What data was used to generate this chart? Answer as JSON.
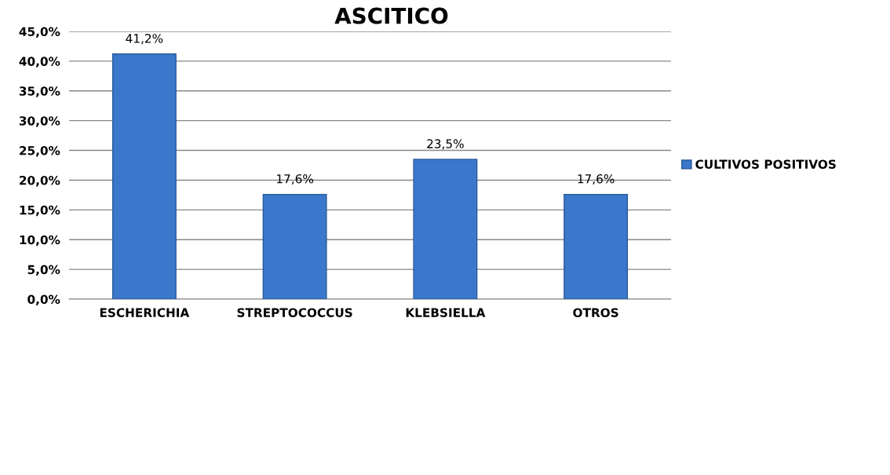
{
  "chart_data": {
    "type": "bar",
    "title": "ASCITICO",
    "categories": [
      "ESCHERICHIA",
      "STREPTOCOCCUS",
      "KLEBSIELLA",
      "OTROS"
    ],
    "series": [
      {
        "name": "CULTIVOS POSITIVOS",
        "color": "#3a78cc",
        "values": [
          41.2,
          17.6,
          23.5,
          17.6
        ],
        "value_labels": [
          "41,2%",
          "17,6%",
          "23,5%",
          "17,6%"
        ]
      }
    ],
    "ylim": [
      0,
      45
    ],
    "yticks": [
      {
        "value": 0,
        "label": "0,0%"
      },
      {
        "value": 5,
        "label": "5,0%"
      },
      {
        "value": 10,
        "label": "10,0%"
      },
      {
        "value": 15,
        "label": "15,0%"
      },
      {
        "value": 20,
        "label": "20,0%"
      },
      {
        "value": 25,
        "label": "25,0%"
      },
      {
        "value": 30,
        "label": "30,0%"
      },
      {
        "value": 35,
        "label": "35,0%"
      },
      {
        "value": 40,
        "label": "40,0%"
      },
      {
        "value": 45,
        "label": "45,0%"
      }
    ],
    "grid": "y",
    "legend": "right"
  }
}
